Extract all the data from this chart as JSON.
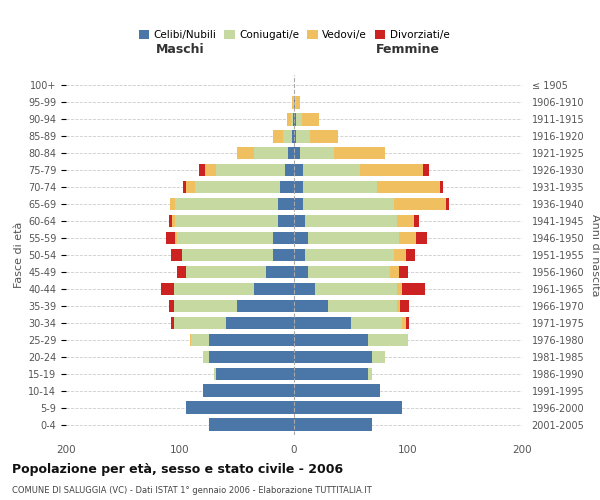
{
  "age_groups_bottom_to_top": [
    "0-4",
    "5-9",
    "10-14",
    "15-19",
    "20-24",
    "25-29",
    "30-34",
    "35-39",
    "40-44",
    "45-49",
    "50-54",
    "55-59",
    "60-64",
    "65-69",
    "70-74",
    "75-79",
    "80-84",
    "85-89",
    "90-94",
    "95-99",
    "100+"
  ],
  "birth_years_bottom_to_top": [
    "2001-2005",
    "1996-2000",
    "1991-1995",
    "1986-1990",
    "1981-1985",
    "1976-1980",
    "1971-1975",
    "1966-1970",
    "1961-1965",
    "1956-1960",
    "1951-1955",
    "1946-1950",
    "1941-1945",
    "1936-1940",
    "1931-1935",
    "1926-1930",
    "1921-1925",
    "1916-1920",
    "1911-1915",
    "1906-1910",
    "≤ 1905"
  ],
  "colors": {
    "celibi": "#4a76a8",
    "coniugati": "#c5d9a0",
    "vedovi": "#f0c060",
    "divorziati": "#cc2222"
  },
  "maschi": {
    "celibi": [
      75,
      95,
      80,
      68,
      75,
      75,
      60,
      50,
      35,
      25,
      18,
      18,
      14,
      14,
      12,
      8,
      5,
      2,
      1,
      0,
      0
    ],
    "coniugati": [
      0,
      0,
      0,
      2,
      5,
      15,
      45,
      55,
      70,
      70,
      80,
      85,
      90,
      90,
      75,
      60,
      30,
      8,
      2,
      1,
      0
    ],
    "vedovi": [
      0,
      0,
      0,
      0,
      0,
      1,
      0,
      0,
      0,
      0,
      0,
      1,
      3,
      5,
      8,
      10,
      15,
      8,
      3,
      1,
      0
    ],
    "divorziati": [
      0,
      0,
      0,
      0,
      0,
      0,
      3,
      5,
      12,
      8,
      10,
      8,
      3,
      0,
      2,
      5,
      0,
      0,
      0,
      0,
      0
    ]
  },
  "femmine": {
    "celibi": [
      68,
      95,
      75,
      65,
      68,
      65,
      50,
      30,
      18,
      12,
      10,
      12,
      10,
      8,
      8,
      8,
      5,
      2,
      2,
      1,
      0
    ],
    "coniugati": [
      0,
      0,
      0,
      3,
      12,
      35,
      45,
      60,
      72,
      72,
      78,
      80,
      80,
      80,
      65,
      50,
      30,
      12,
      5,
      1,
      0
    ],
    "vedovi": [
      0,
      0,
      0,
      0,
      0,
      0,
      3,
      3,
      5,
      8,
      10,
      15,
      15,
      45,
      55,
      55,
      45,
      25,
      15,
      3,
      0
    ],
    "divorziati": [
      0,
      0,
      0,
      0,
      0,
      0,
      3,
      8,
      20,
      8,
      8,
      10,
      5,
      3,
      3,
      5,
      0,
      0,
      0,
      0,
      0
    ]
  },
  "title": "Popolazione per età, sesso e stato civile - 2006",
  "subtitle": "COMUNE DI SALUGGIA (VC) - Dati ISTAT 1° gennaio 2006 - Elaborazione TUTTITALIA.IT",
  "xlabel_left": "Maschi",
  "xlabel_right": "Femmine",
  "ylabel_left": "Fasce di età",
  "ylabel_right": "Anni di nascita",
  "xlim": 200,
  "legend_labels": [
    "Celibi/Nubili",
    "Coniugati/e",
    "Vedovi/e",
    "Divorziati/e"
  ],
  "background_color": "#ffffff",
  "bar_height": 0.75
}
